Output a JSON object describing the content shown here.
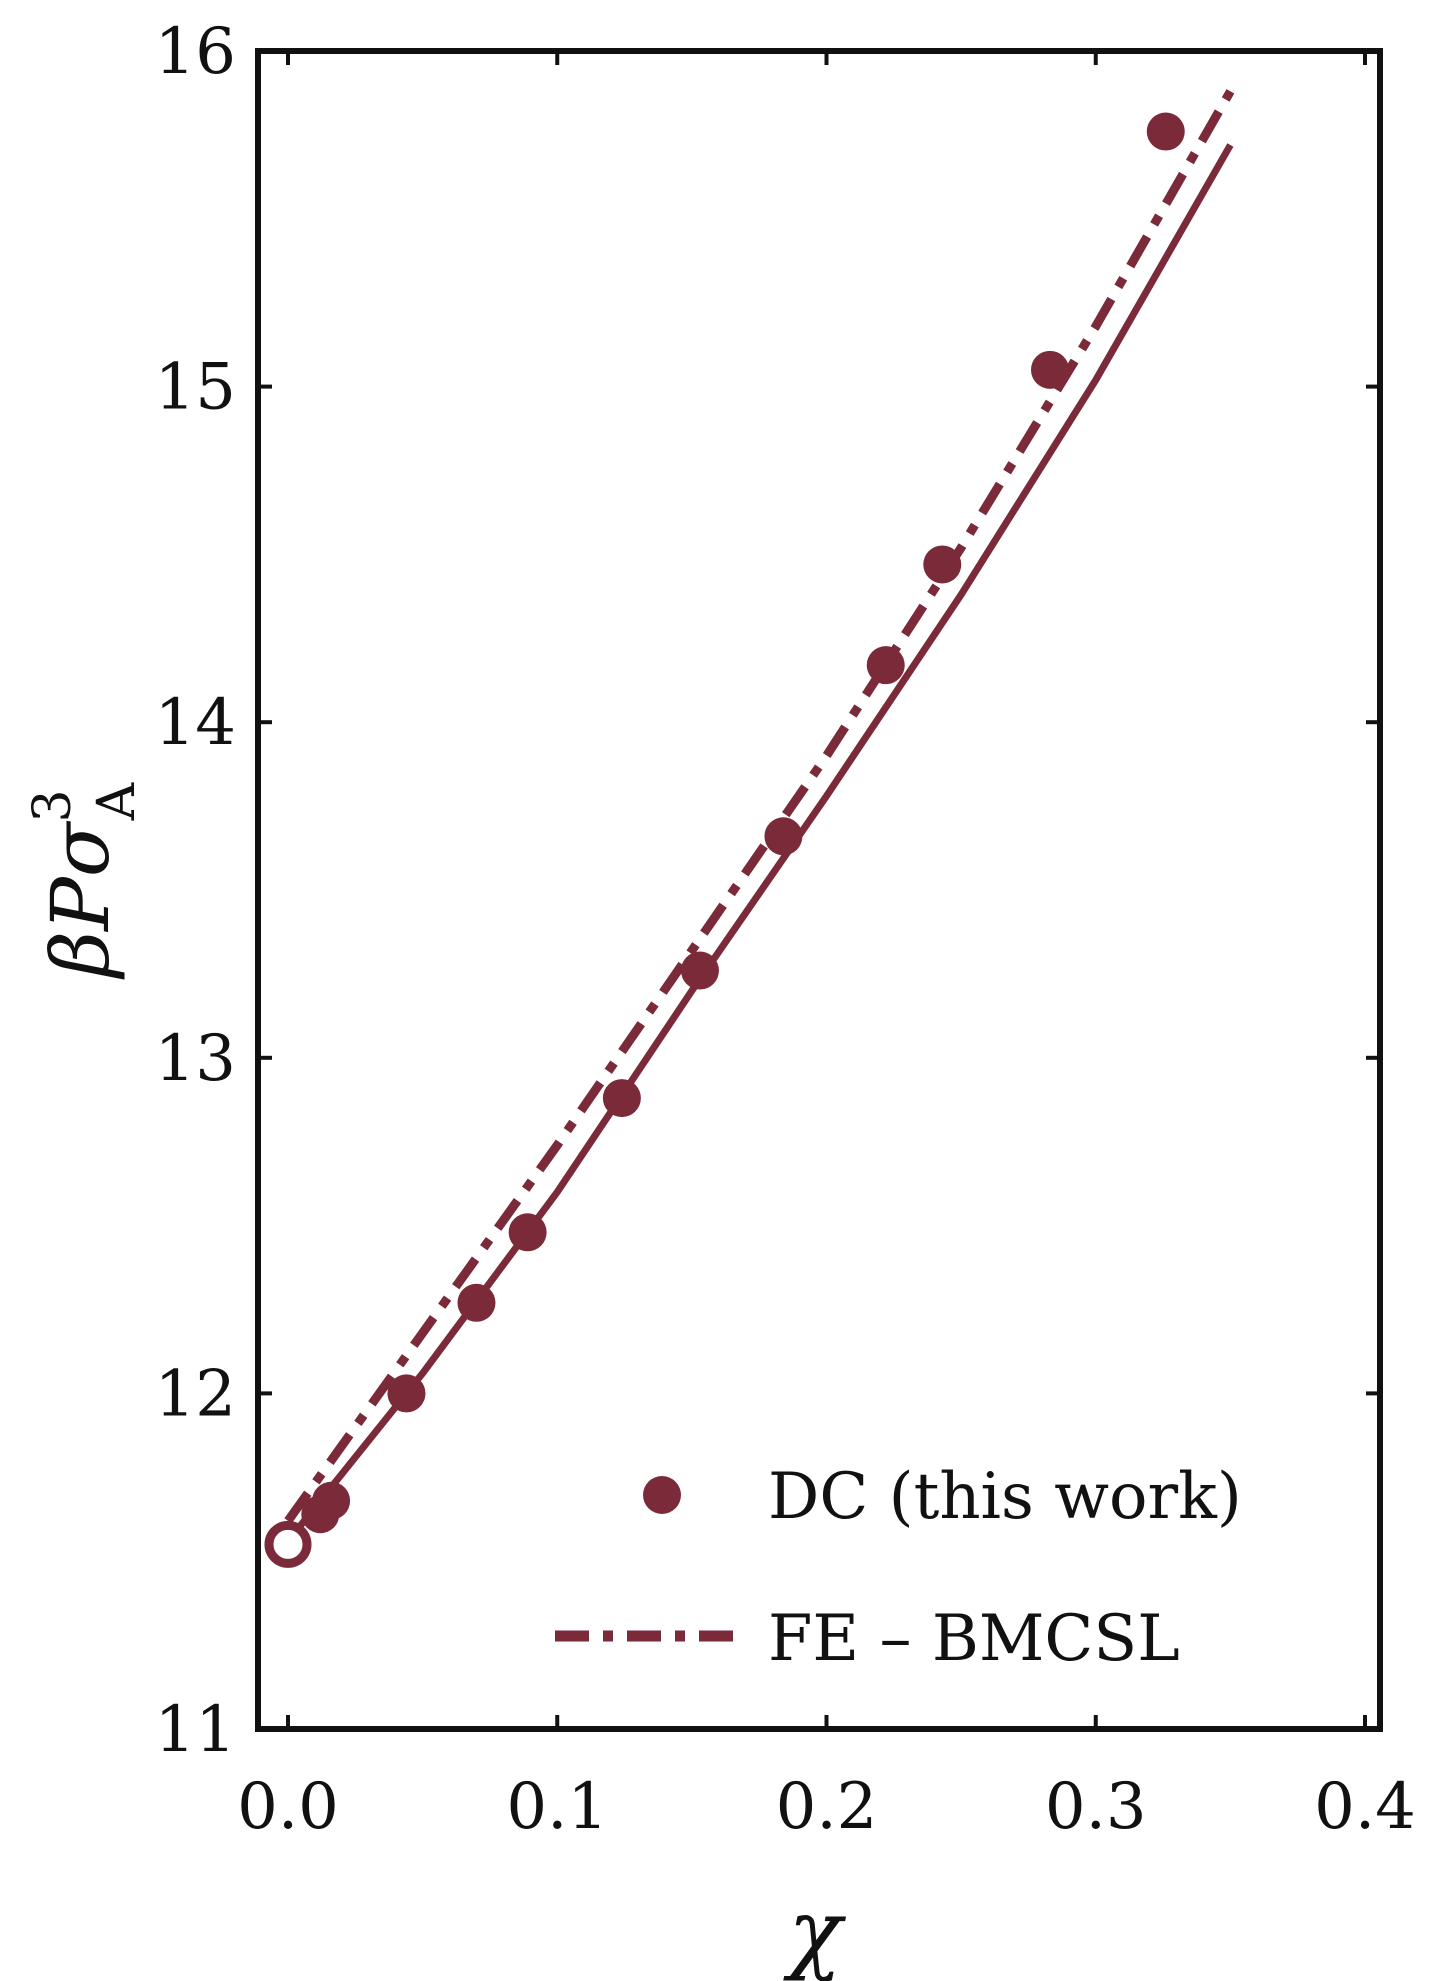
{
  "chart_data": {
    "type": "line",
    "title": "",
    "xlabel": "χ",
    "ylabel": {
      "main": "βPσ",
      "superscript": "3",
      "subscript": "A"
    },
    "xlim": [
      0.0,
      0.4
    ],
    "ylim": [
      11,
      16
    ],
    "x_ticks": [
      0.0,
      0.1,
      0.2,
      0.3,
      0.4
    ],
    "x_tick_labels": [
      "0.0",
      "0.1",
      "0.2",
      "0.3",
      "0.4"
    ],
    "y_ticks": [
      11,
      12,
      13,
      14,
      15,
      16
    ],
    "y_tick_labels": [
      "11",
      "12",
      "13",
      "14",
      "15",
      "16"
    ],
    "grid": false,
    "legend_position": "bottom-right",
    "color": "#7b2a3a",
    "series": [
      {
        "name": "DC (this work)",
        "style": "markers-with-solid-line",
        "x": [
          0.0,
          0.012,
          0.016,
          0.044,
          0.07,
          0.089,
          0.124,
          0.153,
          0.184,
          0.222,
          0.243,
          0.283,
          0.326
        ],
        "y": [
          11.55,
          11.64,
          11.68,
          12.0,
          12.27,
          12.48,
          12.88,
          13.26,
          13.66,
          14.17,
          14.47,
          15.05,
          15.76
        ],
        "open_marker_index": 0
      },
      {
        "name": "FE – BMCSL",
        "style": "dash-dot",
        "x": [
          0.0,
          0.05,
          0.1,
          0.15,
          0.2,
          0.25,
          0.3,
          0.35
        ],
        "y": [
          11.62,
          12.18,
          12.74,
          13.32,
          13.9,
          14.52,
          15.18,
          15.88
        ]
      }
    ],
    "solid_curve": {
      "x": [
        0.0,
        0.05,
        0.1,
        0.15,
        0.2,
        0.25,
        0.3,
        0.35
      ],
      "y": [
        11.56,
        12.06,
        12.6,
        13.2,
        13.78,
        14.38,
        15.02,
        15.72
      ]
    }
  }
}
